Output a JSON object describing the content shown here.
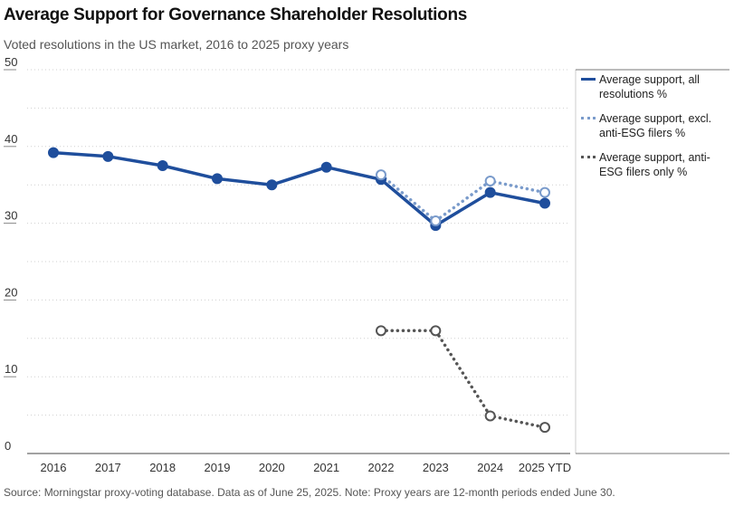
{
  "header": {
    "title": "Average Support for Governance Shareholder Resolutions",
    "subtitle": "Voted resolutions in the US market, 2016 to 2025 proxy years"
  },
  "footer": {
    "source": "Source: Morningstar proxy-voting database. Data as of June 25, 2025. Note: Proxy years are 12-month periods ended June 30."
  },
  "colors": {
    "all": "#1f4e9c",
    "excl": "#7a9bcb",
    "anti": "#555555",
    "grid": "#cfcfcf",
    "axis": "#444444"
  },
  "chart_data": {
    "type": "line",
    "title": "Average Support for Governance Shareholder Resolutions",
    "subtitle": "Voted resolutions in the US market, 2016 to 2025 proxy years",
    "xlabel": "",
    "ylabel": "",
    "categories": [
      "2016",
      "2017",
      "2018",
      "2019",
      "2020",
      "2021",
      "2022",
      "2023",
      "2024",
      "2025 YTD"
    ],
    "ylim": [
      0,
      50
    ],
    "yticks": [
      0,
      10,
      20,
      30,
      40,
      50
    ],
    "grid": true,
    "legend_position": "right",
    "series": [
      {
        "name": "Average support, all resolutions %",
        "style": "solid",
        "color": "#1f4e9c",
        "values": [
          39.2,
          38.7,
          37.5,
          35.8,
          35.0,
          37.3,
          35.7,
          29.7,
          34.0,
          32.6
        ]
      },
      {
        "name": "Average support, excl. anti-ESG filers %",
        "style": "dotted",
        "color": "#7a9bcb",
        "values": [
          null,
          null,
          null,
          null,
          null,
          null,
          36.3,
          30.3,
          35.5,
          34.0
        ]
      },
      {
        "name": "Average support, anti-ESG filers only %",
        "style": "dotted",
        "color": "#555555",
        "values": [
          null,
          null,
          null,
          null,
          null,
          null,
          16.0,
          16.0,
          4.9,
          3.4
        ]
      }
    ]
  }
}
